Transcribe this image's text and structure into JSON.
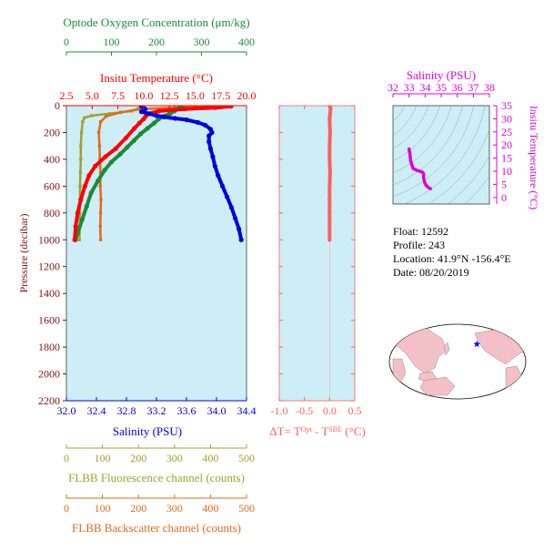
{
  "colors": {
    "panel_bg": "#cdeef6",
    "oxygen": "#1a8a3a",
    "temperature": "#ff0000",
    "salinity": "#0000dd",
    "fluorescence": "#a0a030",
    "backscatter": "#e06a1a",
    "delta_t": "#ff6060",
    "salinity_axis": "#dd00dd",
    "pressure_axis": "#7a1414",
    "map_land": "#f4c0c8",
    "float_marker": "#0000ff"
  },
  "float_info": {
    "float": "Float:  12592",
    "profile": "Profile:  243",
    "location": "Location:  41.9°N  -156.4°E",
    "date": "Date:  08/20/2019"
  },
  "map": {
    "marker_icon": "star-icon",
    "lat": 41.9,
    "lon": -156.4
  },
  "chart_data": [
    {
      "type": "line",
      "title": "",
      "ylabel": "Pressure (decibar)",
      "ylim": [
        2200,
        0
      ],
      "yticks": [
        0,
        200,
        400,
        600,
        800,
        1000,
        1200,
        1400,
        1600,
        1800,
        2000,
        2200
      ],
      "axes": {
        "oxygen": {
          "label": "Optode Oxygen Concentration (μm/kg)",
          "range": [
            0,
            400
          ],
          "ticks": [
            0,
            100,
            200,
            300,
            400
          ]
        },
        "temperature": {
          "label": "Insitu Temperature (°C)",
          "range": [
            2.5,
            20.0
          ],
          "ticks": [
            2.5,
            5.0,
            7.5,
            10.0,
            12.5,
            15.0,
            17.5,
            20.0
          ]
        },
        "salinity": {
          "label": "Salinity (PSU)",
          "range": [
            32.0,
            34.4
          ],
          "ticks": [
            32.0,
            32.4,
            32.8,
            33.2,
            33.6,
            34.0,
            34.4
          ]
        },
        "fluorescence": {
          "label": "FLBB Fluorescence channel (counts)",
          "range": [
            0,
            500
          ],
          "ticks": [
            0,
            100,
            200,
            300,
            400,
            500
          ]
        },
        "backscatter": {
          "label": "FLBB Backscatter channel (counts)",
          "range": [
            0,
            500
          ],
          "ticks": [
            0,
            100,
            200,
            300,
            400,
            500
          ]
        }
      },
      "series": [
        {
          "axis": "salinity",
          "values": [
            [
              33.0,
              5
            ],
            [
              33.05,
              25
            ],
            [
              33.0,
              45
            ],
            [
              33.1,
              60
            ],
            [
              33.2,
              75
            ],
            [
              33.3,
              85
            ],
            [
              33.45,
              95
            ],
            [
              33.6,
              105
            ],
            [
              33.75,
              125
            ],
            [
              33.85,
              145
            ],
            [
              33.92,
              175
            ],
            [
              33.94,
              200
            ],
            [
              33.9,
              225
            ],
            [
              33.9,
              270
            ],
            [
              33.92,
              320
            ],
            [
              33.95,
              380
            ],
            [
              33.98,
              450
            ],
            [
              34.02,
              520
            ],
            [
              34.08,
              600
            ],
            [
              34.14,
              680
            ],
            [
              34.2,
              760
            ],
            [
              34.25,
              840
            ],
            [
              34.3,
              920
            ],
            [
              34.33,
              1000
            ]
          ]
        },
        {
          "axis": "temperature",
          "values": [
            [
              18.5,
              5
            ],
            [
              17.0,
              15
            ],
            [
              14.0,
              25
            ],
            [
              11.5,
              40
            ],
            [
              10.5,
              60
            ],
            [
              10.2,
              80
            ],
            [
              10.0,
              100
            ],
            [
              9.6,
              130
            ],
            [
              9.1,
              170
            ],
            [
              8.3,
              240
            ],
            [
              7.3,
              320
            ],
            [
              6.3,
              380
            ],
            [
              5.3,
              450
            ],
            [
              4.7,
              520
            ],
            [
              4.3,
              600
            ],
            [
              3.9,
              700
            ],
            [
              3.6,
              800
            ],
            [
              3.4,
              900
            ],
            [
              3.3,
              1000
            ]
          ]
        },
        {
          "axis": "oxygen",
          "values": [
            [
              255,
              5
            ],
            [
              250,
              20
            ],
            [
              240,
              40
            ],
            [
              230,
              60
            ],
            [
              215,
              80
            ],
            [
              205,
              100
            ],
            [
              195,
              130
            ],
            [
              180,
              170
            ],
            [
              165,
              210
            ],
            [
              150,
              260
            ],
            [
              135,
              310
            ],
            [
              120,
              360
            ],
            [
              100,
              420
            ],
            [
              85,
              480
            ],
            [
              70,
              560
            ],
            [
              55,
              650
            ],
            [
              45,
              750
            ],
            [
              35,
              850
            ],
            [
              25,
              950
            ],
            [
              20,
              1000
            ]
          ]
        },
        {
          "axis": "fluorescence",
          "values": [
            [
              215,
              5
            ],
            [
              200,
              20
            ],
            [
              180,
              40
            ],
            [
              120,
              60
            ],
            [
              70,
              75
            ],
            [
              50,
              90
            ],
            [
              45,
              120
            ],
            [
              42,
              200
            ],
            [
              40,
              300
            ],
            [
              40,
              400
            ],
            [
              39,
              500
            ],
            [
              38,
              600
            ],
            [
              38,
              700
            ],
            [
              37,
              800
            ],
            [
              37,
              900
            ],
            [
              36,
              1000
            ]
          ]
        },
        {
          "axis": "backscatter",
          "values": [
            [
              400,
              5
            ],
            [
              300,
              15
            ],
            [
              210,
              25
            ],
            [
              150,
              50
            ],
            [
              110,
              80
            ],
            [
              95,
              120
            ],
            [
              90,
              200
            ],
            [
              92,
              300
            ],
            [
              93,
              400
            ],
            [
              95,
              500
            ],
            [
              94,
              600
            ],
            [
              96,
              700
            ],
            [
              95,
              800
            ],
            [
              94,
              900
            ],
            [
              95,
              1000
            ]
          ]
        }
      ]
    },
    {
      "type": "line",
      "title": "",
      "xlabel": "ΔT= T^Opt - T^SBE (°C)",
      "xlim": [
        -1.0,
        0.5
      ],
      "xticks": [
        -1.0,
        -0.5,
        0.0,
        0.5
      ],
      "ylim": [
        2200,
        0
      ],
      "series": [
        {
          "values": [
            [
              0.0,
              0
            ],
            [
              0.02,
              20
            ],
            [
              0.01,
              60
            ],
            [
              0.0,
              100
            ],
            [
              0.01,
              200
            ],
            [
              0.0,
              300
            ],
            [
              0.0,
              400
            ],
            [
              0.01,
              500
            ],
            [
              0.0,
              600
            ],
            [
              0.0,
              700
            ],
            [
              0.0,
              800
            ],
            [
              0.0,
              900
            ],
            [
              0.0,
              1000
            ]
          ]
        }
      ]
    },
    {
      "type": "line",
      "title": "",
      "xlabel": "Salinity (PSU)",
      "ylabel": "Insitu Temperature (°C)",
      "xlim": [
        32,
        38
      ],
      "ylim": [
        -2.5,
        35
      ],
      "xticks": [
        32,
        33,
        34,
        35,
        36,
        37,
        38
      ],
      "yticks": [
        0,
        5,
        10,
        15,
        20,
        25,
        30,
        35
      ],
      "series": [
        {
          "values": [
            [
              33.0,
              18.5
            ],
            [
              33.05,
              17.0
            ],
            [
              33.1,
              14.0
            ],
            [
              33.25,
              11.0
            ],
            [
              33.5,
              10.3
            ],
            [
              33.85,
              9.6
            ],
            [
              33.92,
              8.8
            ],
            [
              33.9,
              8.0
            ],
            [
              33.92,
              7.0
            ],
            [
              33.98,
              5.5
            ],
            [
              34.08,
              4.5
            ],
            [
              34.2,
              3.8
            ],
            [
              34.33,
              3.3
            ]
          ]
        }
      ]
    }
  ]
}
